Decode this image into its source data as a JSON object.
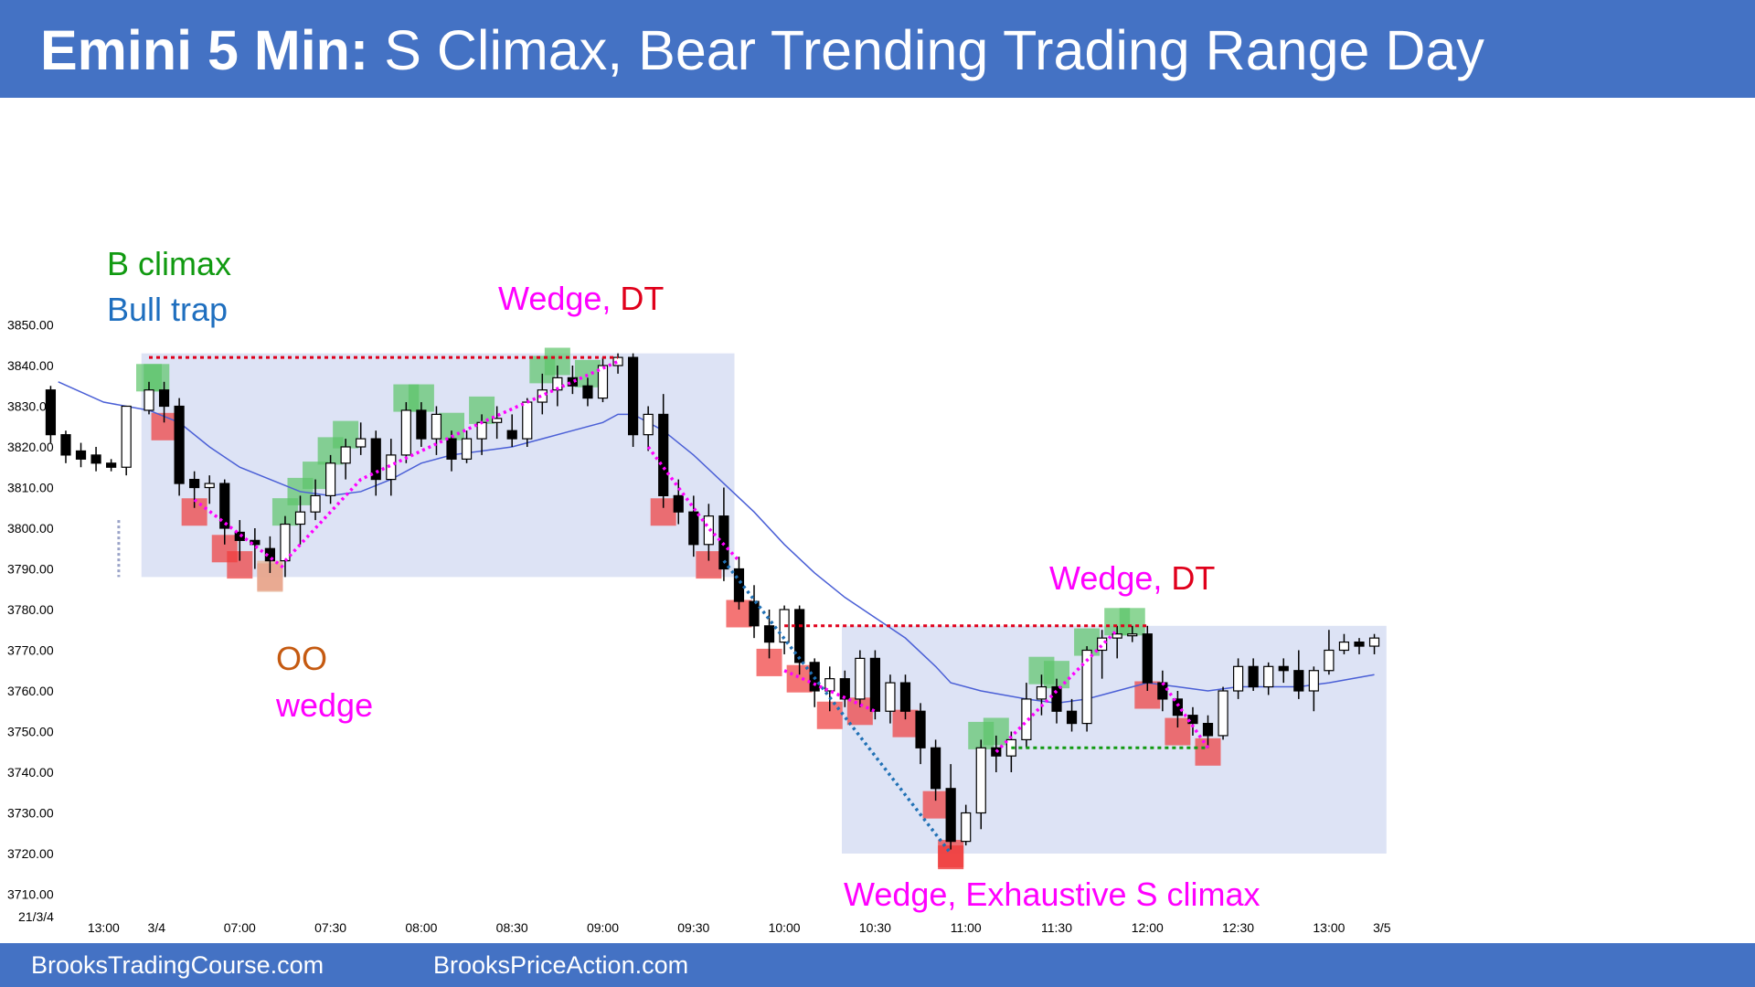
{
  "header": {
    "title_bold": "Emini 5 Min:",
    "title_rest": "S Climax, Bear Trending Trading Range Day"
  },
  "footer": {
    "link1": "BrooksTradingCourse.com",
    "link2": "BrooksPriceAction.com"
  },
  "colors": {
    "header_bg": "#4472c4",
    "bull_highlight": "#5cc46a",
    "bear_highlight": "#ef3b3b",
    "range_box": "#dde3f5",
    "ema": "#4a5fd6",
    "wedge_line": "#ff00ff",
    "trend_line": "#2171b5",
    "resistance_line": "#e0001b",
    "support_line": "#119a11"
  },
  "annotations": [
    {
      "text": "B climax",
      "color": "#119a11"
    },
    {
      "text": "Bull trap",
      "color": "#1f6fbf"
    },
    {
      "text": "Wedge, ",
      "color": "#ff00ff"
    },
    {
      "text": "DT",
      "color": "#e0001b"
    },
    {
      "text": "OO",
      "color": "#c55a11"
    },
    {
      "text": "wedge",
      "color": "#ff00ff"
    },
    {
      "text": "Wedge, ",
      "color": "#ff00ff"
    },
    {
      "text": "DT",
      "color": "#e0001b"
    },
    {
      "text": "Wedge, Exhaustive S climax",
      "color": "#ff00ff"
    }
  ],
  "chart_data": {
    "type": "candlestick",
    "title": "",
    "date_label": "21/3/4",
    "y_axis": {
      "range": [
        3710,
        3850
      ],
      "ticks": [
        "3850.00",
        "3840.00",
        "3830.00",
        "3820.00",
        "3810.00",
        "3800.00",
        "3790.00",
        "3780.00",
        "3770.00",
        "3760.00",
        "3750.00",
        "3740.00",
        "3730.00",
        "3720.00",
        "3710.00"
      ]
    },
    "x_axis": {
      "ticks": [
        {
          "label": "13:00",
          "bar": -3
        },
        {
          "label": "3/4",
          "bar": 0.5
        },
        {
          "label": "07:00",
          "bar": 6
        },
        {
          "label": "07:30",
          "bar": 12
        },
        {
          "label": "08:00",
          "bar": 18
        },
        {
          "label": "08:30",
          "bar": 24
        },
        {
          "label": "09:00",
          "bar": 30
        },
        {
          "label": "09:30",
          "bar": 36
        },
        {
          "label": "10:00",
          "bar": 42
        },
        {
          "label": "10:30",
          "bar": 48
        },
        {
          "label": "11:00",
          "bar": 54
        },
        {
          "label": "11:30",
          "bar": 60
        },
        {
          "label": "12:00",
          "bar": 66
        },
        {
          "label": "12:30",
          "bar": 72
        },
        {
          "label": "13:00",
          "bar": 78
        },
        {
          "label": "3/5",
          "bar": 81.5
        }
      ]
    },
    "premarket": [
      [
        3834,
        3835,
        3821,
        3823
      ],
      [
        3823,
        3824,
        3816,
        3818
      ],
      [
        3819,
        3821,
        3815,
        3817
      ],
      [
        3818,
        3820,
        3814,
        3816
      ],
      [
        3816,
        3817,
        3814,
        3815
      ],
      [
        3815,
        3830,
        3813,
        3830
      ]
    ],
    "candles": [
      [
        3829,
        3836,
        3828,
        3834
      ],
      [
        3834,
        3836,
        3826,
        3830
      ],
      [
        3830,
        3832,
        3808,
        3811
      ],
      [
        3812,
        3814,
        3805,
        3810
      ],
      [
        3810,
        3813,
        3806,
        3811
      ],
      [
        3811,
        3812,
        3796,
        3800
      ],
      [
        3799,
        3802,
        3792,
        3797
      ],
      [
        3797,
        3800,
        3790,
        3796
      ],
      [
        3795,
        3798,
        3789,
        3792
      ],
      [
        3792,
        3803,
        3788,
        3801
      ],
      [
        3801,
        3808,
        3796,
        3804
      ],
      [
        3804,
        3812,
        3802,
        3808
      ],
      [
        3808,
        3818,
        3806,
        3816
      ],
      [
        3816,
        3822,
        3812,
        3820
      ],
      [
        3820,
        3826,
        3818,
        3822
      ],
      [
        3822,
        3824,
        3808,
        3812
      ],
      [
        3812,
        3822,
        3808,
        3818
      ],
      [
        3818,
        3831,
        3816,
        3829
      ],
      [
        3829,
        3831,
        3820,
        3822
      ],
      [
        3822,
        3830,
        3818,
        3828
      ],
      [
        3822,
        3824,
        3814,
        3817
      ],
      [
        3817,
        3824,
        3816,
        3822
      ],
      [
        3822,
        3828,
        3818,
        3826
      ],
      [
        3826,
        3830,
        3822,
        3827
      ],
      [
        3824,
        3828,
        3820,
        3822
      ],
      [
        3822,
        3832,
        3820,
        3831
      ],
      [
        3831,
        3838,
        3828,
        3834
      ],
      [
        3834,
        3840,
        3830,
        3837
      ],
      [
        3837,
        3840,
        3833,
        3835
      ],
      [
        3835,
        3837,
        3830,
        3832
      ],
      [
        3832,
        3842,
        3831,
        3840
      ],
      [
        3840,
        3843,
        3838,
        3842
      ],
      [
        3842,
        3843,
        3820,
        3823
      ],
      [
        3823,
        3830,
        3819,
        3828
      ],
      [
        3828,
        3833,
        3805,
        3808
      ],
      [
        3808,
        3812,
        3801,
        3804
      ],
      [
        3804,
        3808,
        3793,
        3796
      ],
      [
        3796,
        3806,
        3792,
        3803
      ],
      [
        3803,
        3810,
        3787,
        3790
      ],
      [
        3790,
        3793,
        3780,
        3782
      ],
      [
        3782,
        3786,
        3773,
        3776
      ],
      [
        3776,
        3780,
        3768,
        3772
      ],
      [
        3772,
        3781,
        3769,
        3780
      ],
      [
        3780,
        3781,
        3764,
        3767
      ],
      [
        3767,
        3768,
        3756,
        3760
      ],
      [
        3760,
        3766,
        3755,
        3763
      ],
      [
        3763,
        3765,
        3756,
        3758
      ],
      [
        3758,
        3770,
        3756,
        3768
      ],
      [
        3768,
        3770,
        3753,
        3755
      ],
      [
        3755,
        3764,
        3752,
        3762
      ],
      [
        3762,
        3764,
        3753,
        3755
      ],
      [
        3755,
        3757,
        3742,
        3746
      ],
      [
        3746,
        3748,
        3733,
        3736
      ],
      [
        3736,
        3742,
        3721,
        3723
      ],
      [
        3723,
        3732,
        3722,
        3730
      ],
      [
        3730,
        3748,
        3726,
        3746
      ],
      [
        3746,
        3749,
        3740,
        3744
      ],
      [
        3744,
        3750,
        3740,
        3748
      ],
      [
        3748,
        3762,
        3746,
        3758
      ],
      [
        3758,
        3764,
        3754,
        3761
      ],
      [
        3761,
        3763,
        3752,
        3755
      ],
      [
        3755,
        3758,
        3750,
        3752
      ],
      [
        3752,
        3771,
        3750,
        3770
      ],
      [
        3770,
        3775,
        3763,
        3773
      ],
      [
        3773,
        3776,
        3768,
        3774
      ],
      [
        3774,
        3776,
        3772,
        3774
      ],
      [
        3774,
        3776,
        3760,
        3762
      ],
      [
        3762,
        3765,
        3755,
        3758
      ],
      [
        3758,
        3760,
        3751,
        3754
      ],
      [
        3754,
        3756,
        3749,
        3752
      ],
      [
        3752,
        3754,
        3746,
        3749
      ],
      [
        3749,
        3761,
        3748,
        3760
      ],
      [
        3760,
        3768,
        3758,
        3766
      ],
      [
        3766,
        3768,
        3760,
        3761
      ],
      [
        3761,
        3767,
        3759,
        3766
      ],
      [
        3766,
        3768,
        3762,
        3765
      ],
      [
        3765,
        3770,
        3758,
        3760
      ],
      [
        3760,
        3766,
        3755,
        3765
      ],
      [
        3765,
        3775,
        3764,
        3770
      ],
      [
        3770,
        3774,
        3769,
        3772
      ],
      [
        3772,
        3773,
        3769,
        3771
      ],
      [
        3771,
        3774,
        3769,
        3773
      ]
    ],
    "ema20": [
      [
        -6,
        3836
      ],
      [
        -3,
        3831
      ],
      [
        0,
        3829
      ],
      [
        2,
        3826
      ],
      [
        4,
        3820
      ],
      [
        6,
        3815
      ],
      [
        8,
        3812
      ],
      [
        10,
        3809
      ],
      [
        12,
        3808
      ],
      [
        14,
        3809
      ],
      [
        16,
        3812
      ],
      [
        18,
        3816
      ],
      [
        20,
        3818
      ],
      [
        22,
        3819
      ],
      [
        24,
        3820
      ],
      [
        26,
        3822
      ],
      [
        28,
        3824
      ],
      [
        30,
        3826
      ],
      [
        31,
        3828
      ],
      [
        32,
        3828
      ],
      [
        34,
        3824
      ],
      [
        36,
        3818
      ],
      [
        38,
        3811
      ],
      [
        40,
        3804
      ],
      [
        42,
        3796
      ],
      [
        44,
        3789
      ],
      [
        46,
        3783
      ],
      [
        48,
        3778
      ],
      [
        50,
        3773
      ],
      [
        52,
        3766
      ],
      [
        53,
        3762
      ],
      [
        55,
        3760
      ],
      [
        58,
        3758
      ],
      [
        60,
        3757
      ],
      [
        62,
        3758
      ],
      [
        64,
        3760
      ],
      [
        66,
        3762
      ],
      [
        68,
        3761
      ],
      [
        70,
        3760
      ],
      [
        72,
        3761
      ],
      [
        74,
        3761
      ],
      [
        76,
        3761
      ],
      [
        78,
        3762
      ],
      [
        81,
        3764
      ]
    ],
    "ranges": [
      {
        "start_bar": -0.5,
        "end_bar": 38.7,
        "top": 3843,
        "bottom": 3788
      },
      {
        "start_bar": 45.8,
        "end_bar": 81.8,
        "top": 3776,
        "bottom": 3720
      }
    ]
  }
}
